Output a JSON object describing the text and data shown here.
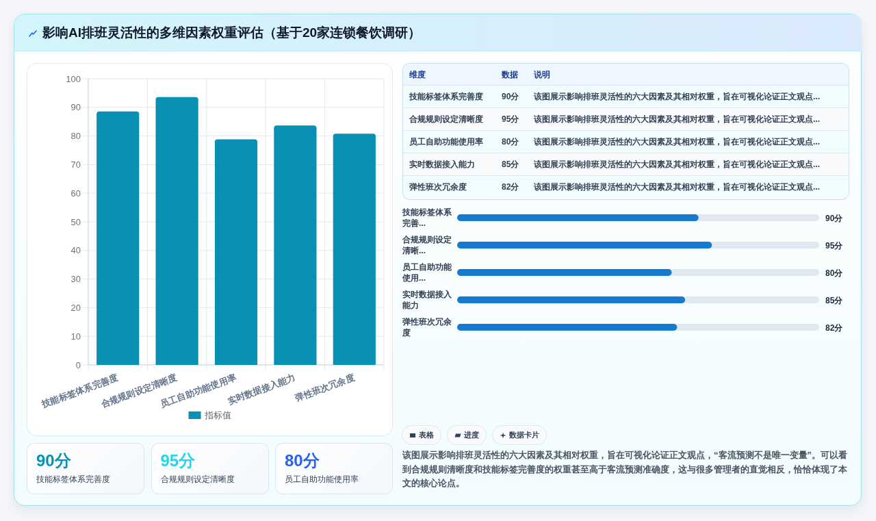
{
  "chart_data": [
    {
      "type": "other",
      "title": "影响AI排班灵活性的多维因素权重评估（基于20家连锁餐饮调研）"
    },
    {
      "type": "bar",
      "categories": [
        "技能标签体系完善度",
        "合规规则设定清晰度",
        "员工自助功能使用率",
        "实时数据接入能力",
        "弹性班次冗余度"
      ],
      "series": [
        {
          "name": "指标值",
          "color": "#0891b2",
          "values": [
            88.6,
            93.6,
            78.8,
            83.7,
            80.8
          ]
        }
      ],
      "ylim": [
        0,
        100
      ],
      "yticks": [
        0,
        10,
        20,
        30,
        40,
        50,
        60,
        70,
        80,
        90,
        100
      ],
      "grid": true,
      "legend": "bottom"
    },
    {
      "type": "other",
      "annotations": [
        "维度",
        "数据",
        "说明",
        "技能标签体系完善度",
        "90分",
        "该图展示影响排班灵活性的六大因素及其相对权重，旨在可视化论证正文观点...",
        "合规规则设定清晰度",
        "95分",
        "该图展示影响排班灵活性的六大因素及其相对权重，旨在可视化论证正文观点...",
        "员工自助功能使用率",
        "80分",
        "该图展示影响排班灵活性的六大因素及其相对权重，旨在可视化论证正文观点...",
        "实时数据接入能力",
        "85分",
        "该图展示影响排班灵活性的六大因素及其相对权重，旨在可视化论证正文观点...",
        "弹性班次冗余度",
        "82分",
        "该图展示影响排班灵活性的六大因素及其相对权重，旨在可视化论证正文观点..."
      ]
    },
    {
      "type": "bar",
      "orientation": "horizontal",
      "categories": [
        "技能标签体系完善...",
        "合规规则设定清晰...",
        "员工自助功能使用...",
        "实时数据接入能力",
        "弹性班次冗余度"
      ],
      "values": [
        90,
        95,
        80,
        85,
        82
      ],
      "value_labels": [
        "90分",
        "95分",
        "80分",
        "85分",
        "82分"
      ],
      "color": "#167ace",
      "xlim": [
        0,
        135
      ],
      "tick_labels": "y"
    },
    {
      "type": "other",
      "annotations": [
        "90分",
        "技能标签体系完善度",
        "95分",
        "合规规则设定清晰度",
        "80分",
        "员工自助功能使用率"
      ],
      "colors": [
        "#0891b2",
        "#22d3ee",
        "#2563eb"
      ]
    },
    {
      "type": "other",
      "annotations": [
        "表格",
        "进度",
        "数据卡片",
        "该图展示影响排班灵活性的六大因素及其相对权重，旨在可视化论证正文观点，“客流预测不是唯一变量”。可以看到合规规则清晰度和技能标签完善度的权重甚至高于客流预测准确度，这与很多管理者的直觉相反，恰恰体现了本文的核心论点。"
      ]
    }
  ]
}
